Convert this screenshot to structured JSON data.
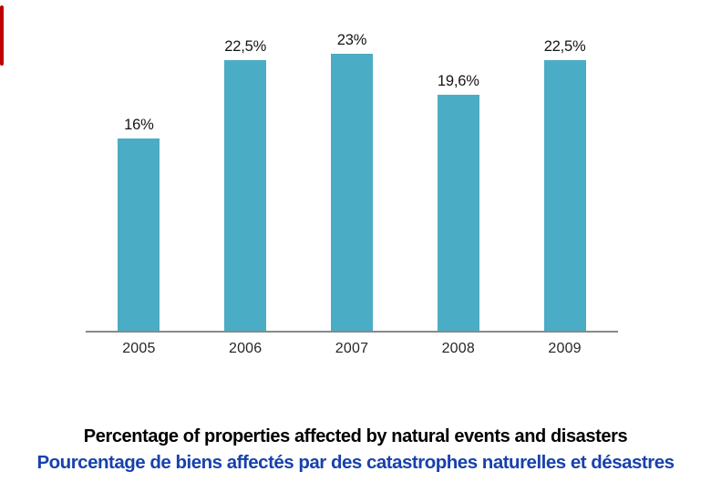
{
  "page": {
    "background": "#ffffff"
  },
  "accent": {
    "left_mark_color": "#c00000"
  },
  "chart_data": {
    "type": "bar",
    "categories": [
      "2005",
      "2006",
      "2007",
      "2008",
      "2009"
    ],
    "values": [
      16,
      22.5,
      23,
      19.6,
      22.5
    ],
    "value_labels": [
      "16%",
      "22,5%",
      "23%",
      "19,6%",
      "22,5%"
    ],
    "title": "",
    "xlabel": "",
    "ylabel": "",
    "ylim": [
      0,
      25.2
    ],
    "grid": false,
    "legend": false,
    "bar_color": "#4BACC6",
    "axis_line_color": "#898989",
    "value_label_color": "#141414",
    "category_label_color": "#262626"
  },
  "captions": {
    "title_en": "Percentage of properties affected by natural events and disasters",
    "title_fr": "Pourcentage de biens affectés par des catastrophes naturelles et désastres",
    "title_en_color": "#000000",
    "title_fr_color": "#1841ac"
  }
}
